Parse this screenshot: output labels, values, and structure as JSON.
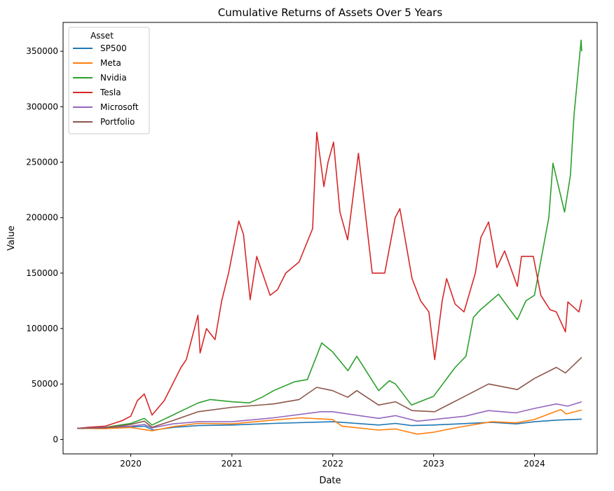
{
  "chart_data": {
    "type": "line",
    "title": "Cumulative Returns of Assets Over 5 Years",
    "xlabel": "Date",
    "ylabel": "Value",
    "xlim": [
      "2019-05-01",
      "2024-08-15"
    ],
    "ylim": [
      -13000,
      376000
    ],
    "x_ticks": [
      "2020-01-01",
      "2021-01-01",
      "2022-01-01",
      "2023-01-01",
      "2024-01-01"
    ],
    "x_tick_labels": [
      "2020",
      "2021",
      "2022",
      "2023",
      "2024"
    ],
    "y_ticks": [
      0,
      50000,
      100000,
      150000,
      200000,
      250000,
      300000,
      350000
    ],
    "y_tick_labels": [
      "0",
      "50000",
      "100000",
      "150000",
      "200000",
      "250000",
      "300000",
      "350000"
    ],
    "grid": false,
    "legend": {
      "title": "Asset",
      "placement": "top-left"
    },
    "series": [
      {
        "name": "SP500",
        "color": "#1f77b4",
        "points": [
          [
            "2019-06-21",
            10000
          ],
          [
            "2019-10-01",
            10200
          ],
          [
            "2020-01-01",
            11300
          ],
          [
            "2020-02-20",
            12000
          ],
          [
            "2020-03-23",
            8500
          ],
          [
            "2020-06-08",
            11000
          ],
          [
            "2020-09-01",
            12500
          ],
          [
            "2021-01-01",
            13000
          ],
          [
            "2021-06-01",
            14500
          ],
          [
            "2021-12-31",
            16000
          ],
          [
            "2022-03-01",
            15000
          ],
          [
            "2022-06-16",
            13000
          ],
          [
            "2022-08-16",
            14500
          ],
          [
            "2022-10-12",
            12500
          ],
          [
            "2023-01-01",
            13000
          ],
          [
            "2023-07-31",
            15500
          ],
          [
            "2023-10-27",
            14000
          ],
          [
            "2024-01-01",
            16000
          ],
          [
            "2024-03-28",
            17500
          ],
          [
            "2024-06-20",
            18300
          ]
        ]
      },
      {
        "name": "Meta",
        "color": "#ff7f0e",
        "points": [
          [
            "2019-06-21",
            10000
          ],
          [
            "2019-10-01",
            9800
          ],
          [
            "2020-01-01",
            10800
          ],
          [
            "2020-03-18",
            7800
          ],
          [
            "2020-06-01",
            11500
          ],
          [
            "2020-09-01",
            14500
          ],
          [
            "2021-01-01",
            14000
          ],
          [
            "2021-06-01",
            17500
          ],
          [
            "2021-09-07",
            19500
          ],
          [
            "2021-12-31",
            18000
          ],
          [
            "2022-02-03",
            12000
          ],
          [
            "2022-06-16",
            8500
          ],
          [
            "2022-08-16",
            9500
          ],
          [
            "2022-11-03",
            4800
          ],
          [
            "2023-01-01",
            6500
          ],
          [
            "2023-04-01",
            11000
          ],
          [
            "2023-07-31",
            16000
          ],
          [
            "2023-10-27",
            15000
          ],
          [
            "2024-01-01",
            18000
          ],
          [
            "2024-04-05",
            27000
          ],
          [
            "2024-04-25",
            23000
          ],
          [
            "2024-06-20",
            26500
          ]
        ]
      },
      {
        "name": "Nvidia",
        "color": "#2ca02c",
        "points": [
          [
            "2019-06-21",
            10000
          ],
          [
            "2019-10-01",
            11000
          ],
          [
            "2020-01-01",
            14500
          ],
          [
            "2020-02-19",
            19000
          ],
          [
            "2020-03-18",
            13000
          ],
          [
            "2020-06-01",
            22000
          ],
          [
            "2020-09-01",
            33000
          ],
          [
            "2020-10-15",
            36000
          ],
          [
            "2021-01-01",
            34000
          ],
          [
            "2021-03-05",
            33000
          ],
          [
            "2021-04-20",
            38000
          ],
          [
            "2021-06-01",
            44000
          ],
          [
            "2021-08-15",
            52000
          ],
          [
            "2021-10-01",
            54000
          ],
          [
            "2021-11-22",
            87000
          ],
          [
            "2021-12-31",
            79000
          ],
          [
            "2022-02-25",
            62000
          ],
          [
            "2022-03-29",
            75000
          ],
          [
            "2022-06-16",
            44000
          ],
          [
            "2022-07-25",
            53000
          ],
          [
            "2022-08-16",
            50000
          ],
          [
            "2022-10-13",
            31000
          ],
          [
            "2023-01-01",
            39000
          ],
          [
            "2023-03-20",
            65000
          ],
          [
            "2023-04-28",
            75000
          ],
          [
            "2023-05-25",
            110000
          ],
          [
            "2023-06-20",
            117000
          ],
          [
            "2023-08-24",
            131000
          ],
          [
            "2023-10-31",
            108000
          ],
          [
            "2023-12-01",
            125000
          ],
          [
            "2024-01-01",
            130000
          ],
          [
            "2024-02-22",
            200000
          ],
          [
            "2024-03-08",
            249000
          ],
          [
            "2024-04-19",
            205000
          ],
          [
            "2024-05-10",
            238000
          ],
          [
            "2024-05-23",
            292000
          ],
          [
            "2024-06-18",
            360000
          ],
          [
            "2024-06-20",
            350000
          ]
        ]
      },
      {
        "name": "Tesla",
        "color": "#d62728",
        "points": [
          [
            "2019-06-21",
            10000
          ],
          [
            "2019-08-01",
            11000
          ],
          [
            "2019-10-01",
            12000
          ],
          [
            "2019-12-01",
            17000
          ],
          [
            "2020-01-01",
            21000
          ],
          [
            "2020-01-25",
            35000
          ],
          [
            "2020-02-19",
            41000
          ],
          [
            "2020-03-18",
            22000
          ],
          [
            "2020-05-01",
            35000
          ],
          [
            "2020-07-01",
            65000
          ],
          [
            "2020-07-20",
            72000
          ],
          [
            "2020-08-31",
            112000
          ],
          [
            "2020-09-08",
            78000
          ],
          [
            "2020-10-01",
            100000
          ],
          [
            "2020-11-01",
            90000
          ],
          [
            "2020-11-25",
            125000
          ],
          [
            "2020-12-20",
            150000
          ],
          [
            "2021-01-26",
            197000
          ],
          [
            "2021-02-12",
            185000
          ],
          [
            "2021-03-08",
            126000
          ],
          [
            "2021-04-01",
            165000
          ],
          [
            "2021-05-19",
            130000
          ],
          [
            "2021-06-15",
            135000
          ],
          [
            "2021-07-15",
            150000
          ],
          [
            "2021-09-01",
            160000
          ],
          [
            "2021-10-20",
            190000
          ],
          [
            "2021-11-04",
            277000
          ],
          [
            "2021-11-30",
            228000
          ],
          [
            "2021-12-15",
            250000
          ],
          [
            "2022-01-04",
            268000
          ],
          [
            "2022-01-27",
            205000
          ],
          [
            "2022-02-24",
            180000
          ],
          [
            "2022-04-04",
            258000
          ],
          [
            "2022-05-24",
            150000
          ],
          [
            "2022-07-08",
            150000
          ],
          [
            "2022-08-15",
            200000
          ],
          [
            "2022-09-01",
            208000
          ],
          [
            "2022-10-15",
            145000
          ],
          [
            "2022-11-15",
            125000
          ],
          [
            "2022-12-15",
            115000
          ],
          [
            "2023-01-05",
            72000
          ],
          [
            "2023-02-01",
            125000
          ],
          [
            "2023-02-17",
            145000
          ],
          [
            "2023-03-20",
            122000
          ],
          [
            "2023-04-21",
            115000
          ],
          [
            "2023-06-01",
            150000
          ],
          [
            "2023-06-21",
            182000
          ],
          [
            "2023-07-19",
            196000
          ],
          [
            "2023-08-18",
            155000
          ],
          [
            "2023-09-15",
            170000
          ],
          [
            "2023-10-31",
            138000
          ],
          [
            "2023-11-15",
            165000
          ],
          [
            "2023-12-28",
            165000
          ],
          [
            "2024-01-24",
            130000
          ],
          [
            "2024-02-26",
            117000
          ],
          [
            "2024-03-20",
            115000
          ],
          [
            "2024-04-22",
            97000
          ],
          [
            "2024-05-01",
            124000
          ],
          [
            "2024-06-10",
            115000
          ],
          [
            "2024-06-20",
            126000
          ]
        ]
      },
      {
        "name": "Microsoft",
        "color": "#9467bd",
        "points": [
          [
            "2019-06-21",
            10000
          ],
          [
            "2019-10-01",
            11000
          ],
          [
            "2020-01-01",
            12000
          ],
          [
            "2020-02-19",
            13500
          ],
          [
            "2020-03-18",
            10500
          ],
          [
            "2020-06-01",
            14000
          ],
          [
            "2020-09-01",
            16000
          ],
          [
            "2021-01-01",
            16000
          ],
          [
            "2021-06-01",
            19500
          ],
          [
            "2021-11-19",
            25000
          ],
          [
            "2021-12-31",
            25000
          ],
          [
            "2022-06-16",
            19000
          ],
          [
            "2022-08-16",
            21500
          ],
          [
            "2022-11-03",
            16500
          ],
          [
            "2023-01-01",
            18000
          ],
          [
            "2023-04-25",
            21000
          ],
          [
            "2023-07-18",
            26000
          ],
          [
            "2023-10-26",
            24000
          ],
          [
            "2024-01-01",
            28000
          ],
          [
            "2024-03-20",
            32000
          ],
          [
            "2024-04-30",
            30000
          ],
          [
            "2024-06-20",
            34000
          ]
        ]
      },
      {
        "name": "Portfolio",
        "color": "#8c564b",
        "points": [
          [
            "2019-06-21",
            10000
          ],
          [
            "2019-10-01",
            10400
          ],
          [
            "2020-01-01",
            13500
          ],
          [
            "2020-02-19",
            16500
          ],
          [
            "2020-03-18",
            11000
          ],
          [
            "2020-06-01",
            17000
          ],
          [
            "2020-09-01",
            25000
          ],
          [
            "2021-01-01",
            29000
          ],
          [
            "2021-06-01",
            32000
          ],
          [
            "2021-09-01",
            36000
          ],
          [
            "2021-11-04",
            47000
          ],
          [
            "2021-12-31",
            44000
          ],
          [
            "2022-02-24",
            38000
          ],
          [
            "2022-03-29",
            44000
          ],
          [
            "2022-06-16",
            31000
          ],
          [
            "2022-08-16",
            34000
          ],
          [
            "2022-10-15",
            26000
          ],
          [
            "2023-01-05",
            25000
          ],
          [
            "2023-04-01",
            36000
          ],
          [
            "2023-07-19",
            50000
          ],
          [
            "2023-10-31",
            45000
          ],
          [
            "2024-01-01",
            55000
          ],
          [
            "2024-03-20",
            65000
          ],
          [
            "2024-04-22",
            60000
          ],
          [
            "2024-06-20",
            74000
          ]
        ]
      }
    ]
  }
}
